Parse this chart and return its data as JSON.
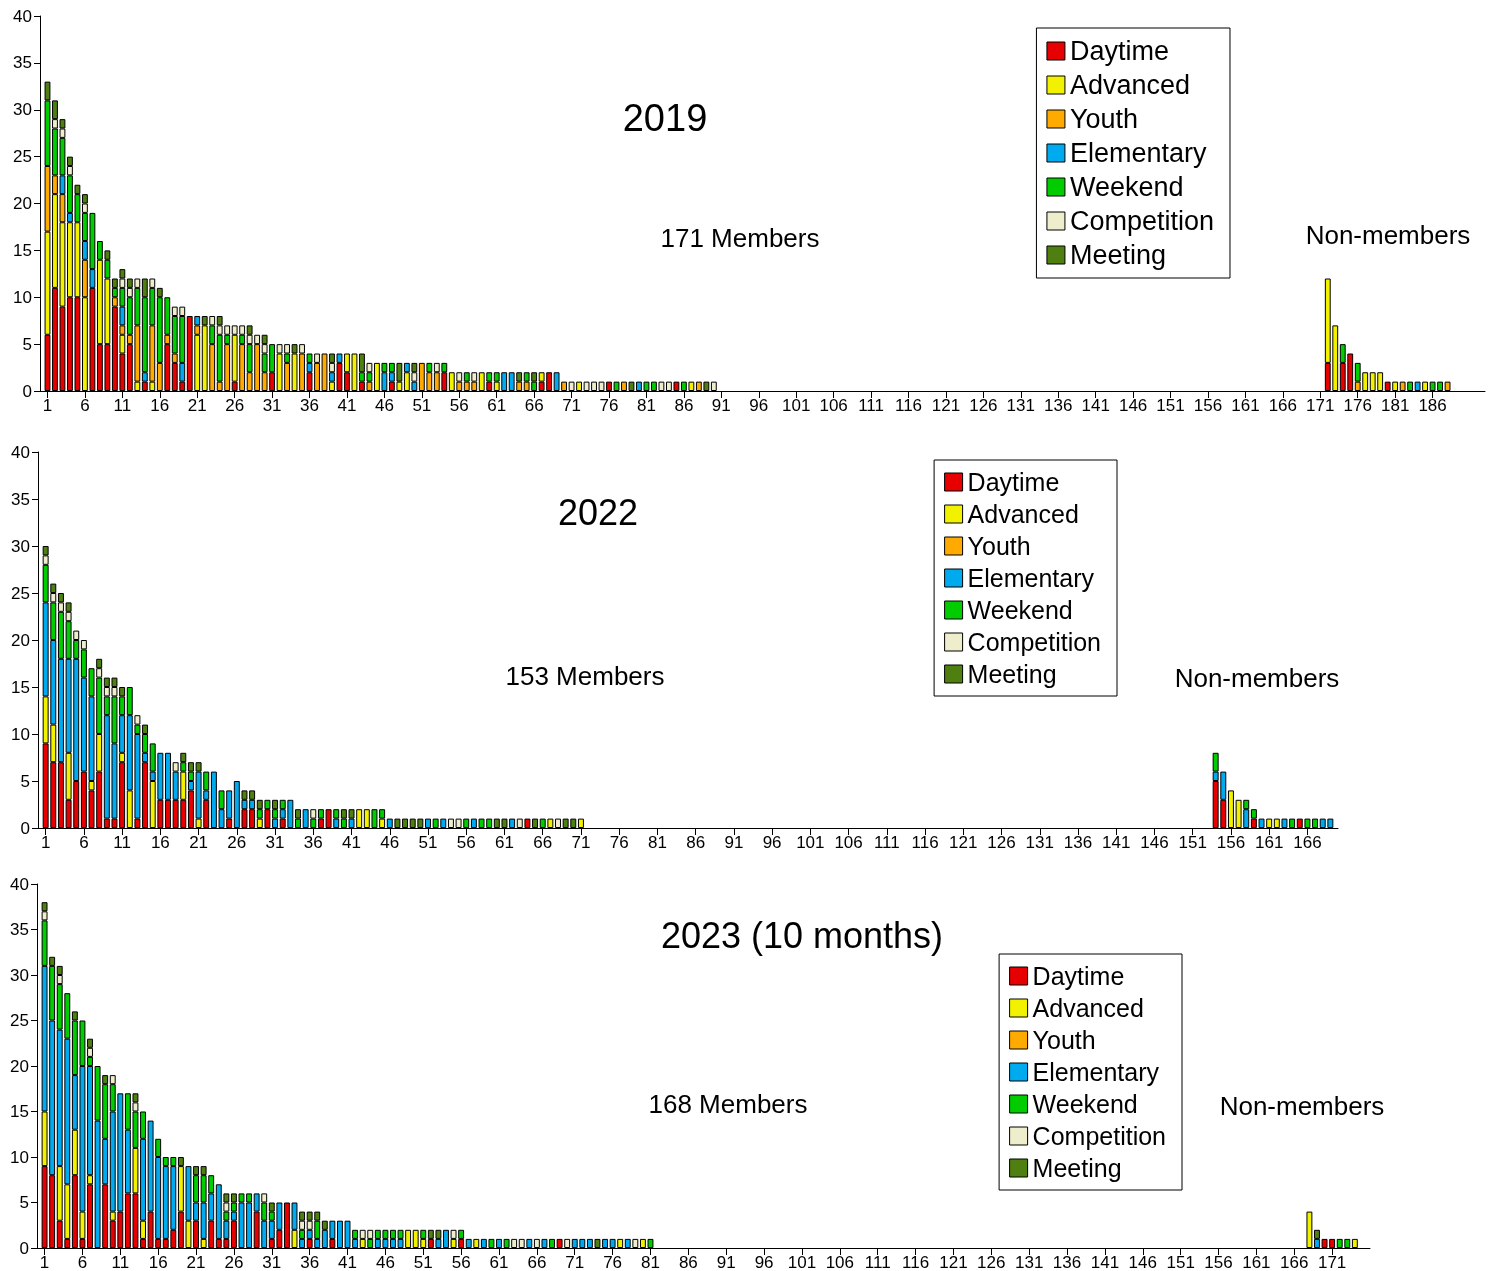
{
  "chart_data": [
    {
      "type": "bar",
      "title": "2019",
      "annotations": [
        "171 Members",
        "Non-members"
      ],
      "stacked": true,
      "legend": "top right",
      "x": [
        1,
        2,
        3,
        4,
        5,
        6,
        7,
        8,
        9,
        10,
        11,
        12,
        13,
        14,
        15,
        16,
        17,
        18,
        19,
        20,
        21,
        22,
        23,
        24,
        25,
        26,
        27,
        28,
        29,
        30,
        31,
        32,
        33,
        34,
        35,
        36,
        37,
        38,
        39,
        40,
        41,
        42,
        43,
        44,
        45,
        46,
        47,
        48,
        49,
        50,
        51,
        52,
        53,
        54,
        55,
        56,
        57,
        58,
        59,
        60,
        61,
        62,
        63,
        64,
        65,
        66,
        67,
        68,
        69,
        70,
        71,
        72,
        73,
        74,
        75,
        76,
        77,
        78,
        79,
        80,
        81,
        82,
        83,
        84,
        85,
        86,
        87,
        88,
        89,
        90,
        172,
        173,
        174,
        175,
        176,
        177,
        178,
        179,
        180,
        181,
        182,
        183,
        184,
        185,
        186,
        187,
        188
      ],
      "xlim": [
        0,
        193
      ],
      "xticks": [
        1,
        6,
        11,
        16,
        21,
        26,
        31,
        36,
        41,
        46,
        51,
        56,
        61,
        66,
        71,
        76,
        81,
        86,
        91,
        96,
        101,
        106,
        111,
        116,
        121,
        126,
        131,
        136,
        141,
        146,
        151,
        156,
        161,
        166,
        171,
        176,
        181,
        186
      ],
      "ylim": [
        0,
        40
      ],
      "yticks": [
        0,
        5,
        10,
        15,
        20,
        25,
        30,
        35,
        40
      ],
      "series": [
        {
          "name": "Daytime",
          "color": "#e60000",
          "values": [
            6,
            11,
            9,
            10,
            10,
            0,
            11,
            5,
            5,
            9,
            4,
            5,
            0,
            1,
            0,
            0,
            5,
            3,
            1,
            8,
            0,
            0,
            0,
            0,
            0,
            1,
            0,
            0,
            0,
            0,
            2,
            0,
            0,
            0,
            0,
            2,
            0,
            0,
            0,
            3,
            2,
            0,
            1,
            0,
            0,
            0,
            1,
            0,
            0,
            0,
            0,
            0,
            0,
            2,
            0,
            0,
            0,
            0,
            0,
            1,
            0,
            0,
            0,
            0,
            0,
            0,
            1,
            2,
            0,
            0,
            0,
            0,
            0,
            0,
            0,
            1,
            0,
            0,
            0,
            0,
            0,
            0,
            0,
            0,
            1,
            0,
            0,
            0,
            0,
            0,
            3,
            0,
            3,
            4,
            0,
            0,
            0,
            0,
            1,
            0,
            0,
            0,
            0,
            0,
            0,
            0,
            0
          ]
        },
        {
          "name": "Advanced",
          "color": "#f2f200",
          "values": [
            11,
            10,
            9,
            8,
            8,
            10,
            0,
            9,
            7,
            0,
            2,
            0,
            1,
            0,
            1,
            0,
            0,
            0,
            0,
            0,
            6,
            7,
            0,
            0,
            0,
            5,
            0,
            0,
            0,
            0,
            0,
            4,
            0,
            4,
            0,
            0,
            0,
            0,
            1,
            0,
            2,
            4,
            0,
            0,
            3,
            0,
            0,
            1,
            2,
            0,
            0,
            0,
            0,
            0,
            2,
            0,
            0,
            0,
            2,
            0,
            1,
            0,
            0,
            0,
            0,
            0,
            1,
            0,
            0,
            0,
            0,
            1,
            0,
            0,
            0,
            0,
            0,
            0,
            0,
            0,
            0,
            0,
            0,
            0,
            0,
            0,
            1,
            0,
            0,
            0,
            9,
            7,
            0,
            0,
            0,
            2,
            2,
            2,
            0,
            1,
            0,
            0,
            0,
            1,
            0,
            0,
            0
          ]
        },
        {
          "name": "Youth",
          "color": "#ffaa00",
          "values": [
            7,
            2,
            3,
            0,
            0,
            4,
            0,
            0,
            0,
            1,
            1,
            1,
            6,
            0,
            6,
            3,
            1,
            1,
            0,
            0,
            1,
            0,
            5,
            1,
            5,
            0,
            5,
            2,
            5,
            2,
            0,
            0,
            3,
            0,
            4,
            0,
            3,
            4,
            0,
            0,
            0,
            0,
            0,
            1,
            0,
            0,
            0,
            0,
            0,
            0,
            3,
            2,
            2,
            0,
            0,
            1,
            1,
            1,
            0,
            0,
            0,
            0,
            0,
            1,
            1,
            0,
            0,
            0,
            0,
            1,
            0,
            0,
            0,
            0,
            0,
            0,
            0,
            1,
            0,
            0,
            0,
            0,
            0,
            0,
            0,
            0,
            0,
            1,
            0,
            0,
            0,
            0,
            0,
            0,
            1,
            0,
            0,
            0,
            0,
            0,
            1,
            0,
            0,
            0,
            0,
            0,
            1
          ]
        },
        {
          "name": "Elementary",
          "color": "#00aaee",
          "values": [
            0,
            0,
            2,
            1,
            0,
            2,
            2,
            0,
            0,
            0,
            2,
            0,
            0,
            1,
            0,
            0,
            0,
            0,
            2,
            0,
            1,
            0,
            0,
            0,
            0,
            0,
            0,
            0,
            0,
            0,
            0,
            0,
            0,
            0,
            0,
            1,
            0,
            0,
            1,
            1,
            0,
            0,
            0,
            0,
            0,
            2,
            1,
            0,
            1,
            1,
            0,
            0,
            0,
            0,
            0,
            0,
            0,
            0,
            0,
            0,
            0,
            2,
            2,
            0,
            0,
            0,
            0,
            0,
            2,
            0,
            0,
            0,
            0,
            0,
            0,
            0,
            0,
            0,
            0,
            1,
            0,
            0,
            0,
            0,
            0,
            0,
            0,
            0,
            0,
            0,
            0,
            0,
            0,
            0,
            0,
            0,
            0,
            0,
            0,
            0,
            0,
            0,
            1,
            0,
            0,
            0,
            0
          ]
        },
        {
          "name": "Weekend",
          "color": "#00cc00",
          "values": [
            7,
            5,
            4,
            4,
            3,
            3,
            6,
            2,
            2,
            1,
            2,
            4,
            4,
            8,
            4,
            7,
            4,
            4,
            5,
            0,
            0,
            0,
            2,
            5,
            1,
            0,
            1,
            3,
            0,
            2,
            3,
            0,
            1,
            0,
            0,
            1,
            0,
            0,
            0,
            0,
            0,
            0,
            1,
            1,
            0,
            1,
            1,
            0,
            0,
            0,
            0,
            1,
            0,
            1,
            0,
            0,
            1,
            0,
            0,
            1,
            1,
            0,
            0,
            0,
            1,
            1,
            0,
            0,
            0,
            0,
            0,
            0,
            0,
            0,
            0,
            0,
            1,
            0,
            0,
            0,
            1,
            1,
            0,
            0,
            0,
            1,
            0,
            0,
            0,
            0,
            0,
            0,
            2,
            0,
            2,
            0,
            0,
            0,
            0,
            0,
            0,
            1,
            0,
            0,
            1,
            1,
            0
          ]
        },
        {
          "name": "Competition",
          "color": "#eeeecc",
          "values": [
            0,
            1,
            1,
            1,
            0,
            1,
            0,
            0,
            0,
            0,
            1,
            1,
            1,
            0,
            1,
            0,
            0,
            1,
            1,
            0,
            0,
            0,
            1,
            1,
            1,
            1,
            1,
            1,
            1,
            1,
            0,
            1,
            1,
            0,
            1,
            0,
            1,
            0,
            1,
            0,
            0,
            0,
            0,
            1,
            0,
            0,
            0,
            0,
            0,
            1,
            0,
            0,
            1,
            0,
            0,
            1,
            0,
            1,
            0,
            0,
            0,
            0,
            0,
            0,
            0,
            0,
            0,
            0,
            0,
            0,
            1,
            0,
            1,
            1,
            1,
            0,
            0,
            0,
            0,
            0,
            0,
            0,
            1,
            1,
            0,
            0,
            0,
            0,
            0,
            1,
            0,
            0,
            0,
            0,
            0,
            0,
            0,
            0,
            0,
            0,
            0,
            0,
            0,
            0,
            0,
            0,
            0
          ]
        },
        {
          "name": "Meeting",
          "color": "#4f7f10",
          "values": [
            2,
            2,
            1,
            1,
            1,
            1,
            0,
            0,
            1,
            1,
            1,
            1,
            0,
            2,
            0,
            1,
            0,
            0,
            0,
            0,
            0,
            1,
            0,
            1,
            0,
            0,
            0,
            1,
            0,
            1,
            0,
            0,
            0,
            1,
            0,
            0,
            0,
            0,
            1,
            0,
            0,
            0,
            2,
            0,
            0,
            0,
            0,
            2,
            0,
            1,
            0,
            0,
            0,
            0,
            0,
            0,
            0,
            0,
            0,
            0,
            0,
            0,
            0,
            1,
            0,
            1,
            0,
            0,
            0,
            0,
            0,
            0,
            0,
            0,
            0,
            0,
            0,
            0,
            1,
            0,
            0,
            0,
            0,
            0,
            0,
            0,
            0,
            0,
            1,
            0,
            0,
            0,
            0,
            0,
            0,
            0,
            0,
            0,
            0,
            0,
            0,
            0,
            0,
            0,
            0,
            0,
            0
          ]
        }
      ]
    },
    {
      "type": "bar",
      "title": "2022",
      "annotations": [
        "153 Members",
        "Non-members"
      ],
      "stacked": true,
      "legend": "top right",
      "x": [
        1,
        2,
        3,
        4,
        5,
        6,
        7,
        8,
        9,
        10,
        11,
        12,
        13,
        14,
        15,
        16,
        17,
        18,
        19,
        20,
        21,
        22,
        23,
        24,
        25,
        26,
        27,
        28,
        29,
        30,
        31,
        32,
        33,
        34,
        35,
        36,
        37,
        38,
        39,
        40,
        41,
        42,
        43,
        44,
        45,
        46,
        47,
        48,
        49,
        50,
        51,
        52,
        53,
        54,
        55,
        56,
        57,
        58,
        59,
        60,
        61,
        62,
        63,
        64,
        65,
        66,
        67,
        68,
        69,
        70,
        71,
        154,
        155,
        156,
        157,
        158,
        159,
        160,
        161,
        162,
        163,
        164,
        165,
        166,
        167,
        168,
        169
      ],
      "xlim": [
        0,
        170
      ],
      "xticks": [
        1,
        6,
        11,
        16,
        21,
        26,
        31,
        36,
        41,
        46,
        51,
        56,
        61,
        66,
        71,
        76,
        81,
        86,
        91,
        96,
        101,
        106,
        111,
        116,
        121,
        126,
        131,
        136,
        141,
        146,
        151,
        156,
        161,
        166
      ],
      "ylim": [
        0,
        40
      ],
      "yticks": [
        0,
        5,
        10,
        15,
        20,
        25,
        30,
        35,
        40
      ],
      "series": [
        {
          "name": "Daytime",
          "color": "#e60000",
          "values": [
            9,
            7,
            7,
            3,
            5,
            6,
            4,
            6,
            1,
            1,
            7,
            0,
            1,
            7,
            0,
            3,
            3,
            3,
            3,
            4,
            0,
            3,
            0,
            0,
            1,
            0,
            2,
            2,
            0,
            2,
            0,
            1,
            0,
            0,
            0,
            0,
            1,
            2,
            0,
            0,
            0,
            0,
            0,
            0,
            0,
            0,
            0,
            0,
            0,
            0,
            0,
            0,
            0,
            0,
            0,
            0,
            0,
            0,
            0,
            0,
            0,
            0,
            0,
            1,
            0,
            0,
            0,
            0,
            0,
            0,
            0,
            5,
            3,
            0,
            0,
            0,
            1,
            0,
            0,
            0,
            0,
            0,
            1,
            0,
            0,
            0,
            0
          ]
        },
        {
          "name": "Advanced",
          "color": "#f2f200",
          "values": [
            5,
            4,
            0,
            5,
            0,
            0,
            1,
            4,
            0,
            0,
            1,
            4,
            0,
            0,
            5,
            0,
            0,
            0,
            3,
            0,
            1,
            0,
            0,
            0,
            0,
            0,
            0,
            0,
            1,
            0,
            0,
            0,
            0,
            0,
            0,
            0,
            0,
            0,
            0,
            0,
            0,
            2,
            2,
            0,
            1,
            0,
            0,
            0,
            0,
            0,
            0,
            0,
            0,
            0,
            0,
            0,
            0,
            0,
            0,
            0,
            0,
            0,
            0,
            0,
            0,
            0,
            1,
            0,
            0,
            0,
            1,
            0,
            0,
            4,
            3,
            0,
            0,
            0,
            1,
            1,
            0,
            0,
            0,
            0,
            0,
            0,
            0
          ]
        },
        {
          "name": "Youth",
          "color": "#ffaa00",
          "values": [
            0,
            0,
            0,
            0,
            0,
            0,
            0,
            0,
            0,
            0,
            0,
            0,
            0,
            0,
            0,
            0,
            0,
            0,
            0,
            0,
            0,
            0,
            0,
            0,
            0,
            0,
            0,
            0,
            0,
            0,
            0,
            0,
            0,
            0,
            0,
            0,
            0,
            0,
            0,
            0,
            0,
            0,
            0,
            0,
            0,
            0,
            0,
            0,
            0,
            0,
            0,
            0,
            0,
            0,
            0,
            0,
            0,
            0,
            0,
            0,
            0,
            0,
            0,
            0,
            0,
            0,
            0,
            0,
            0,
            0,
            0,
            0,
            0,
            0,
            0,
            0,
            0,
            0,
            0,
            0,
            0,
            0,
            0,
            0,
            0,
            0,
            0
          ]
        },
        {
          "name": "Elementary",
          "color": "#00aaee",
          "values": [
            10,
            9,
            11,
            10,
            13,
            10,
            9,
            0,
            11,
            8,
            4,
            8,
            9,
            1,
            1,
            5,
            5,
            3,
            0,
            1,
            5,
            1,
            6,
            2,
            3,
            5,
            1,
            1,
            0,
            0,
            1,
            1,
            3,
            0,
            2,
            0,
            0,
            0,
            1,
            0,
            1,
            0,
            0,
            0,
            0,
            1,
            0,
            0,
            0,
            0,
            1,
            0,
            1,
            0,
            0,
            0,
            1,
            0,
            0,
            0,
            0,
            1,
            0,
            0,
            0,
            0,
            0,
            0,
            0,
            0,
            0,
            1,
            3,
            0,
            0,
            2,
            0,
            1,
            0,
            0,
            1,
            0,
            0,
            0,
            0,
            1,
            1
          ]
        },
        {
          "name": "Weekend",
          "color": "#00cc00",
          "values": [
            4,
            4,
            5,
            4,
            2,
            3,
            3,
            6,
            2,
            5,
            2,
            3,
            1,
            2,
            3,
            0,
            0,
            0,
            1,
            1,
            0,
            2,
            0,
            2,
            0,
            0,
            0,
            0,
            1,
            1,
            1,
            1,
            0,
            1,
            0,
            1,
            1,
            0,
            1,
            1,
            0,
            0,
            0,
            2,
            1,
            0,
            0,
            0,
            0,
            0,
            0,
            1,
            0,
            0,
            0,
            1,
            0,
            1,
            1,
            0,
            0,
            0,
            0,
            0,
            0,
            1,
            0,
            0,
            0,
            0,
            0,
            2,
            0,
            0,
            0,
            1,
            1,
            0,
            0,
            0,
            0,
            1,
            0,
            1,
            1,
            0,
            0
          ]
        },
        {
          "name": "Competition",
          "color": "#eeeecc",
          "values": [
            1,
            1,
            1,
            1,
            1,
            1,
            0,
            1,
            1,
            1,
            0,
            0,
            1,
            0,
            0,
            0,
            0,
            1,
            0,
            0,
            0,
            0,
            0,
            0,
            0,
            0,
            0,
            0,
            0,
            0,
            0,
            0,
            0,
            0,
            0,
            1,
            0,
            0,
            0,
            0,
            0,
            0,
            0,
            0,
            0,
            0,
            0,
            0,
            0,
            0,
            0,
            0,
            0,
            1,
            1,
            0,
            0,
            0,
            0,
            0,
            0,
            0,
            1,
            0,
            0,
            0,
            0,
            1,
            0,
            0,
            0,
            0,
            0,
            0,
            0,
            0,
            0,
            0,
            0,
            0,
            0,
            0,
            0,
            0,
            0,
            0,
            0
          ]
        },
        {
          "name": "Meeting",
          "color": "#4f7f10",
          "values": [
            1,
            1,
            1,
            1,
            0,
            0,
            0,
            1,
            1,
            1,
            1,
            0,
            0,
            1,
            0,
            0,
            0,
            0,
            1,
            1,
            1,
            0,
            0,
            0,
            0,
            0,
            1,
            1,
            1,
            0,
            1,
            0,
            0,
            1,
            0,
            0,
            0,
            0,
            0,
            1,
            1,
            0,
            0,
            0,
            0,
            0,
            1,
            1,
            1,
            1,
            0,
            0,
            0,
            0,
            0,
            0,
            0,
            0,
            0,
            1,
            1,
            0,
            0,
            0,
            1,
            0,
            0,
            0,
            1,
            1,
            0,
            0,
            0,
            0,
            0,
            0,
            0,
            0,
            0,
            0,
            0,
            0,
            0,
            0,
            0,
            0,
            0
          ]
        }
      ]
    },
    {
      "type": "bar",
      "title": "2023 (10 months)",
      "annotations": [
        "168 Members",
        "Non-members"
      ],
      "stacked": true,
      "legend": "right",
      "x": [
        1,
        2,
        3,
        4,
        5,
        6,
        7,
        8,
        9,
        10,
        11,
        12,
        13,
        14,
        15,
        16,
        17,
        18,
        19,
        20,
        21,
        22,
        23,
        24,
        25,
        26,
        27,
        28,
        29,
        30,
        31,
        32,
        33,
        34,
        35,
        36,
        37,
        38,
        39,
        40,
        41,
        42,
        43,
        44,
        45,
        46,
        47,
        48,
        49,
        50,
        51,
        52,
        53,
        54,
        55,
        56,
        57,
        58,
        59,
        60,
        61,
        62,
        63,
        64,
        65,
        66,
        67,
        68,
        69,
        70,
        71,
        72,
        73,
        74,
        75,
        76,
        77,
        78,
        79,
        80,
        81,
        168,
        169,
        170,
        171,
        172,
        173,
        174
      ],
      "xlim": [
        0,
        176
      ],
      "xticks": [
        1,
        6,
        11,
        16,
        21,
        26,
        31,
        36,
        41,
        46,
        51,
        56,
        61,
        66,
        71,
        76,
        81,
        86,
        91,
        96,
        101,
        106,
        111,
        116,
        121,
        126,
        131,
        136,
        141,
        146,
        151,
        156,
        161,
        166,
        171
      ],
      "ylim": [
        0,
        40
      ],
      "yticks": [
        0,
        5,
        10,
        15,
        20,
        25,
        30,
        35,
        40
      ],
      "series": [
        {
          "name": "Daytime",
          "color": "#e60000",
          "values": [
            9,
            8,
            3,
            1,
            8,
            1,
            7,
            0,
            7,
            3,
            4,
            6,
            6,
            1,
            4,
            1,
            1,
            2,
            4,
            0,
            3,
            0,
            3,
            1,
            1,
            3,
            0,
            0,
            4,
            0,
            1,
            2,
            5,
            0,
            0,
            1,
            0,
            0,
            1,
            0,
            0,
            0,
            0,
            0,
            0,
            0,
            0,
            0,
            0,
            0,
            0,
            1,
            0,
            0,
            0,
            1,
            0,
            0,
            0,
            0,
            0,
            0,
            0,
            0,
            0,
            0,
            0,
            0,
            1,
            0,
            0,
            0,
            0,
            0,
            0,
            0,
            0,
            0,
            0,
            0,
            0,
            0,
            0,
            1,
            1,
            0,
            0,
            0
          ]
        },
        {
          "name": "Advanced",
          "color": "#f2f200",
          "values": [
            6,
            0,
            6,
            6,
            5,
            3,
            1,
            0,
            0,
            1,
            0,
            0,
            5,
            2,
            0,
            0,
            0,
            0,
            5,
            3,
            0,
            1,
            0,
            0,
            0,
            0,
            0,
            0,
            0,
            0,
            0,
            0,
            0,
            2,
            0,
            0,
            0,
            0,
            0,
            0,
            0,
            0,
            1,
            0,
            0,
            0,
            0,
            0,
            2,
            2,
            1,
            0,
            0,
            0,
            1,
            0,
            0,
            1,
            0,
            0,
            0,
            0,
            0,
            0,
            0,
            0,
            0,
            0,
            0,
            0,
            0,
            0,
            0,
            0,
            0,
            0,
            1,
            0,
            0,
            1,
            0,
            4,
            0,
            0,
            0,
            0,
            0,
            1
          ]
        },
        {
          "name": "Youth",
          "color": "#ffaa00",
          "values": [
            0,
            0,
            0,
            0,
            0,
            0,
            0,
            0,
            0,
            0,
            0,
            0,
            0,
            0,
            0,
            0,
            0,
            0,
            0,
            0,
            0,
            0,
            0,
            0,
            0,
            0,
            0,
            0,
            0,
            0,
            0,
            0,
            0,
            0,
            0,
            0,
            0,
            0,
            0,
            0,
            0,
            0,
            0,
            0,
            0,
            0,
            0,
            0,
            0,
            0,
            0,
            0,
            0,
            0,
            0,
            0,
            0,
            0,
            0,
            0,
            0,
            0,
            0,
            0,
            0,
            0,
            0,
            0,
            0,
            0,
            0,
            0,
            0,
            0,
            0,
            0,
            0,
            0,
            0,
            0,
            0,
            0,
            0,
            0,
            0,
            0,
            0,
            0
          ]
        },
        {
          "name": "Elementary",
          "color": "#00aaee",
          "values": [
            16,
            17,
            15,
            16,
            6,
            16,
            12,
            14,
            5,
            11,
            13,
            7,
            0,
            9,
            10,
            9,
            8,
            7,
            0,
            6,
            2,
            4,
            3,
            6,
            2,
            1,
            5,
            5,
            2,
            3,
            2,
            3,
            0,
            3,
            1,
            1,
            1,
            2,
            2,
            3,
            3,
            1,
            0,
            0,
            1,
            1,
            1,
            1,
            0,
            0,
            0,
            0,
            1,
            2,
            0,
            0,
            1,
            0,
            1,
            0,
            1,
            0,
            0,
            0,
            1,
            0,
            1,
            0,
            0,
            0,
            1,
            1,
            1,
            0,
            1,
            1,
            0,
            1,
            0,
            0,
            0,
            0,
            1,
            0,
            0,
            0,
            0,
            0
          ]
        },
        {
          "name": "Weekend",
          "color": "#00cc00",
          "values": [
            5,
            6,
            5,
            5,
            6,
            5,
            1,
            6,
            6,
            3,
            0,
            4,
            4,
            3,
            0,
            2,
            1,
            1,
            0,
            0,
            3,
            3,
            2,
            0,
            1,
            1,
            1,
            1,
            0,
            2,
            1,
            0,
            0,
            0,
            1,
            0,
            2,
            0,
            0,
            0,
            0,
            1,
            0,
            1,
            1,
            1,
            1,
            1,
            0,
            0,
            1,
            0,
            0,
            0,
            0,
            1,
            0,
            0,
            0,
            1,
            0,
            1,
            0,
            0,
            0,
            0,
            0,
            1,
            0,
            0,
            0,
            0,
            0,
            0,
            0,
            0,
            0,
            0,
            0,
            0,
            1,
            0,
            0,
            0,
            0,
            1,
            1,
            0
          ]
        },
        {
          "name": "Competition",
          "color": "#eeeecc",
          "values": [
            1,
            0,
            1,
            0,
            0,
            0,
            1,
            0,
            0,
            1,
            0,
            0,
            1,
            0,
            0,
            0,
            0,
            0,
            0,
            0,
            0,
            0,
            0,
            0,
            1,
            0,
            0,
            0,
            0,
            1,
            0,
            0,
            0,
            0,
            1,
            1,
            0,
            0,
            0,
            0,
            0,
            0,
            1,
            1,
            0,
            0,
            0,
            0,
            0,
            0,
            0,
            0,
            0,
            0,
            1,
            0,
            0,
            0,
            0,
            0,
            0,
            0,
            1,
            1,
            0,
            1,
            0,
            0,
            0,
            1,
            0,
            0,
            0,
            0,
            0,
            0,
            0,
            0,
            1,
            0,
            0,
            0,
            0,
            0,
            0,
            0,
            0,
            0
          ]
        },
        {
          "name": "Meeting",
          "color": "#4f7f10",
          "values": [
            1,
            1,
            1,
            0,
            1,
            0,
            1,
            0,
            1,
            0,
            0,
            0,
            1,
            0,
            0,
            0,
            0,
            0,
            1,
            0,
            1,
            1,
            0,
            0,
            1,
            1,
            0,
            0,
            0,
            0,
            1,
            0,
            0,
            0,
            1,
            1,
            1,
            1,
            0,
            0,
            0,
            0,
            0,
            0,
            0,
            0,
            0,
            0,
            0,
            0,
            0,
            1,
            1,
            0,
            0,
            0,
            0,
            0,
            0,
            0,
            0,
            0,
            0,
            0,
            0,
            0,
            0,
            0,
            0,
            0,
            0,
            0,
            0,
            1,
            0,
            0,
            0,
            0,
            0,
            0,
            0,
            0,
            1,
            0,
            0,
            0,
            0,
            0
          ]
        }
      ]
    }
  ]
}
